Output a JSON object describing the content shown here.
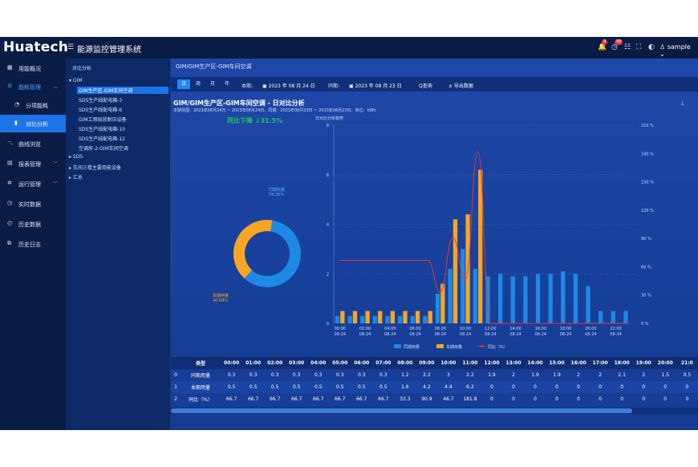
{
  "header": {
    "logo": "Huatech",
    "system_title": "能源监控管理系统",
    "badge_bell": "9",
    "badge_msg": "99",
    "user": "sample"
  },
  "sidebar": {
    "items": [
      {
        "label": "用能概况",
        "icon": "grid-icon"
      },
      {
        "label": "能耗管理",
        "icon": "gear-icon",
        "expanded": true
      },
      {
        "label": "分项能耗",
        "icon": "pie-icon"
      },
      {
        "label": "对比分析",
        "icon": "bar-icon",
        "active": true
      },
      {
        "label": "曲线浏览",
        "icon": "line-icon"
      },
      {
        "label": "报表管理",
        "icon": "report-icon"
      },
      {
        "label": "运行管理",
        "icon": "cog-icon"
      },
      {
        "label": "实时数据",
        "icon": "clock-icon"
      },
      {
        "label": "历史数据",
        "icon": "history-icon"
      },
      {
        "label": "历史日志",
        "icon": "log-icon"
      }
    ]
  },
  "tree": {
    "title": "对比分析",
    "nodes": [
      "GIM",
      "GIM生产区-GIM车间空调",
      "SDS生产线配电箱-3",
      "SDS生产线配电箱-6",
      "GIM工频局放耐压设备",
      "SDS生产线配电箱-10",
      "SDS生产线配电箱-12",
      "空调房-2-GIM车间空调",
      "SDS",
      "车间三楼主要用能设备",
      "汇总"
    ]
  },
  "main": {
    "breadcrumb": "GIM/GIM生产区-GIM车间空调",
    "tabs": [
      "日",
      "周",
      "月",
      "年"
    ],
    "current_label": "本期:",
    "current_date": "2023 年 08 月 24 日",
    "compare_label": "同期:",
    "compare_date": "2023 年 08 月 23 日",
    "query_button": "Q查询",
    "export_button": "± 导出数据",
    "chart_title": "GIM/GIM生产区-GIM车间空调 - 日对比分析",
    "chart_subtitle": "本期范围：2023年08月24日 ~ 2023年08月24日，同期：2023年08月23日 ~ 2023年08月23日，单位：kWh",
    "trend": "同比下降 ↓31.5%",
    "donut_prev_label": "同期用量",
    "donut_prev_pct": "59.36%",
    "donut_cur_label": "本期用量",
    "donut_cur_pct": "40.64%",
    "bar_chart_title": "日对比分析趋势"
  },
  "chart_data": [
    {
      "type": "pie",
      "labels": [
        "同期用量",
        "本期用量"
      ],
      "values": [
        59.36,
        40.64
      ],
      "colors": [
        "#1e88e5",
        "#f5a623"
      ]
    },
    {
      "type": "bar",
      "title": "日对比分析趋势",
      "categories": [
        "00:00",
        "01:00",
        "02:00",
        "03:00",
        "04:00",
        "05:00",
        "06:00",
        "07:00",
        "08:00",
        "09:00",
        "10:00",
        "11:00",
        "12:00",
        "13:00",
        "14:00",
        "15:00",
        "16:00",
        "17:00",
        "18:00",
        "19:00",
        "20:00",
        "21:00",
        "22:00",
        "23:00"
      ],
      "x_tick_labels": [
        "00:00",
        "02:00",
        "04:00",
        "06:00",
        "08:00",
        "10:00",
        "12:00",
        "14:00",
        "16:00",
        "18:00",
        "20:00",
        "22:00"
      ],
      "x_tick_sublabel": "08-24",
      "series": [
        {
          "name": "同期用量",
          "values": [
            0.3,
            0.3,
            0.3,
            0.3,
            0.3,
            0.3,
            0.3,
            0.3,
            1.2,
            2.2,
            3,
            2.2,
            1.9,
            2,
            1.9,
            1.9,
            2,
            2,
            2.1,
            2,
            1.5,
            0.5,
            0.5,
            0.5
          ],
          "color": "#1e88e5"
        },
        {
          "name": "本期用量",
          "values": [
            0.5,
            0.5,
            0.5,
            0.5,
            0.5,
            0.5,
            0.5,
            0.5,
            1.6,
            4.2,
            4.4,
            6.2,
            0,
            0,
            0,
            0,
            0,
            0,
            0,
            0,
            0,
            0,
            0,
            0
          ],
          "color": "#f5a623"
        },
        {
          "name": "同比（%）",
          "axis": "right",
          "values": [
            66.7,
            66.7,
            66.7,
            66.7,
            66.7,
            66.7,
            66.7,
            66.7,
            33.3,
            90.9,
            46.7,
            181.8,
            0,
            0,
            0,
            0,
            0,
            0,
            0,
            0,
            0,
            0,
            0,
            0
          ],
          "color": "#e53935"
        }
      ],
      "ylim": [
        0,
        8
      ],
      "y_ticks": [
        "0",
        "2",
        "4",
        "6",
        "8"
      ],
      "y2_ticks": [
        "0 %",
        "30 %",
        "60 %",
        "90 %",
        "120 %",
        "150 %",
        "180 %",
        "210 %"
      ],
      "legend": [
        "同期用量",
        "本期用量",
        "同比（%）"
      ]
    }
  ],
  "table": {
    "headers": [
      "",
      "类型",
      "00:00",
      "01:00",
      "02:00",
      "03:00",
      "04:00",
      "05:00",
      "06:00",
      "07:00",
      "08:00",
      "09:00",
      "10:00",
      "11:00",
      "12:00",
      "13:00",
      "14:00",
      "15:00",
      "16:00",
      "17:00",
      "18:00",
      "19:00",
      "20:00",
      "21:0"
    ],
    "rows": [
      [
        "0",
        "同期用量",
        "0.3",
        "0.3",
        "0.3",
        "0.3",
        "0.3",
        "0.3",
        "0.3",
        "0.3",
        "1.2",
        "2.2",
        "3",
        "2.2",
        "1.9",
        "2",
        "1.9",
        "1.9",
        "2",
        "2",
        "2.1",
        "2",
        "1.5",
        "0.5"
      ],
      [
        "1",
        "本期用量",
        "0.5",
        "0.5",
        "0.5",
        "0.5",
        "0.5",
        "0.5",
        "0.5",
        "0.5",
        "1.6",
        "4.2",
        "4.4",
        "6.2",
        "0",
        "0",
        "0",
        "0",
        "0",
        "0",
        "0",
        "0",
        "0",
        "0"
      ],
      [
        "2",
        "同比（%）",
        "66.7",
        "66.7",
        "66.7",
        "66.7",
        "66.7",
        "66.7",
        "66.7",
        "66.7",
        "33.3",
        "90.9",
        "46.7",
        "181.8",
        "0",
        "0",
        "0",
        "0",
        "0",
        "0",
        "0",
        "0",
        "0",
        "0"
      ]
    ]
  }
}
